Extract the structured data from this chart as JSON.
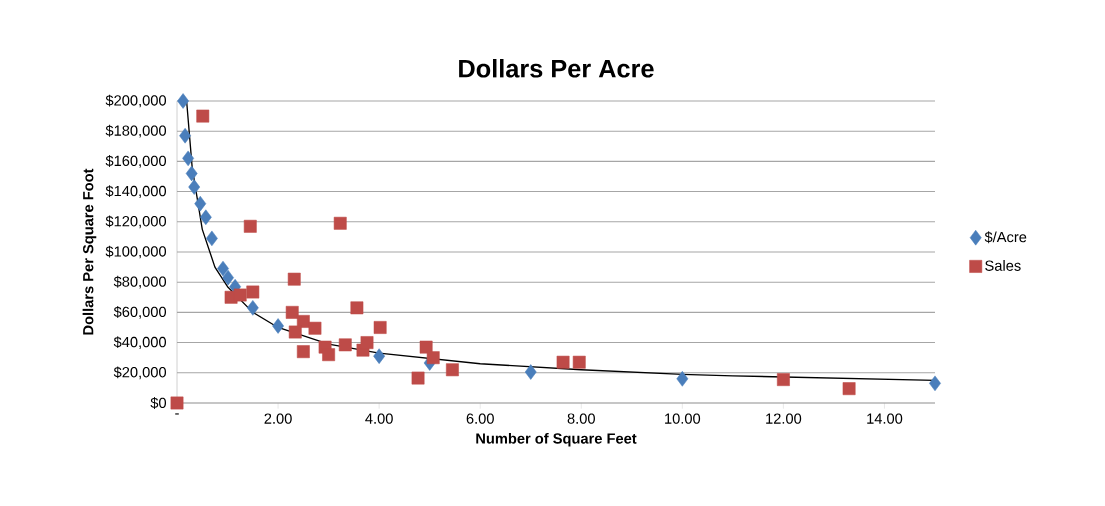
{
  "chart_data": {
    "type": "scatter",
    "title": "Dollars Per Acre",
    "xlabel": "Number of Square Feet",
    "ylabel": "Dollars Per Square Foot",
    "series": [
      {
        "name": "$/Acre",
        "color": "#4a7ebb",
        "marker": "diamond",
        "x": [
          0.12,
          0.16,
          0.22,
          0.29,
          0.34,
          0.46,
          0.57,
          0.69,
          0.91,
          1.01,
          1.15,
          1.5,
          2.0,
          4.0,
          5.0,
          7.0,
          10.0,
          15.0
        ],
        "values": [
          200000,
          177000,
          162000,
          152000,
          143000,
          132000,
          123000,
          109000,
          89000,
          83000,
          77000,
          63000,
          51000,
          31000,
          26500,
          20500,
          16000,
          13000
        ]
      },
      {
        "name": "Sales",
        "color": "#be4b48",
        "marker": "square",
        "x": [
          0.0,
          0.51,
          1.45,
          3.23,
          2.32,
          1.07,
          1.25,
          1.5,
          2.28,
          2.5,
          2.34,
          2.73,
          2.5,
          2.93,
          3.0,
          3.33,
          3.56,
          3.68,
          3.76,
          4.02,
          4.93,
          4.77,
          5.07,
          5.45,
          7.64,
          7.96,
          12.0,
          13.3
        ],
        "values": [
          0,
          190000,
          117000,
          119000,
          82000,
          70000,
          71500,
          73500,
          60000,
          54000,
          47000,
          49500,
          34000,
          37000,
          32000,
          38500,
          63000,
          35000,
          40000,
          50000,
          37000,
          16500,
          30000,
          22000,
          27000,
          27000,
          15500,
          9500
        ]
      },
      {
        "type": "line",
        "color": "#000000",
        "marker": "none",
        "x": [
          0.19,
          0.3,
          0.5,
          0.75,
          1,
          1.5,
          2,
          3,
          4,
          6,
          8,
          10,
          11,
          15
        ],
        "values": [
          200000,
          156000,
          115000,
          90000,
          77000,
          60000,
          50000,
          39000,
          33000,
          26000,
          22000,
          19000,
          18000,
          15000
        ]
      }
    ],
    "xlim": [
      0,
      15
    ],
    "xticks": [
      {
        "value": 0,
        "label": "-"
      },
      {
        "value": 2,
        "label": "2.00"
      },
      {
        "value": 4,
        "label": "4.00"
      },
      {
        "value": 6,
        "label": "6.00"
      },
      {
        "value": 8,
        "label": "8.00"
      },
      {
        "value": 10,
        "label": "10.00"
      },
      {
        "value": 12,
        "label": "12.00"
      },
      {
        "value": 14,
        "label": "14.00"
      }
    ],
    "ylim": [
      0,
      200000
    ],
    "yticks": [
      {
        "value": 0,
        "label": "$0"
      },
      {
        "value": 20000,
        "label": "$20,000"
      },
      {
        "value": 40000,
        "label": "$40,000"
      },
      {
        "value": 60000,
        "label": "$60,000"
      },
      {
        "value": 80000,
        "label": "$80,000"
      },
      {
        "value": 100000,
        "label": "$100,000"
      },
      {
        "value": 120000,
        "label": "$120,000"
      },
      {
        "value": 140000,
        "label": "$140,000"
      },
      {
        "value": 160000,
        "label": "$160,000"
      },
      {
        "value": 180000,
        "label": "$180,000"
      },
      {
        "value": 200000,
        "label": "$200,000"
      }
    ],
    "grid": "y",
    "legend": "right"
  }
}
